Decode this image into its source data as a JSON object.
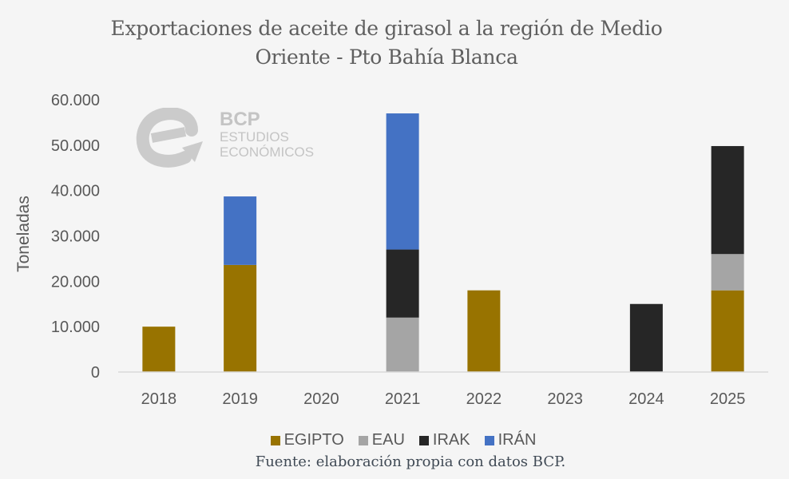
{
  "chart_data": {
    "type": "bar",
    "stacked": true,
    "title": [
      "Exportaciones de aceite de girasol a la región de Medio",
      "Oriente - Pto Bahía Blanca"
    ],
    "xlabel": "",
    "ylabel": "Toneladas",
    "ylim": [
      0,
      60000
    ],
    "yticks": [
      0,
      10000,
      20000,
      30000,
      40000,
      50000,
      60000
    ],
    "ytick_labels": [
      "0",
      "10.000",
      "20.000",
      "30.000",
      "40.000",
      "50.000",
      "60.000"
    ],
    "categories": [
      "2018",
      "2019",
      "2020",
      "2021",
      "2022",
      "2023",
      "2024",
      "2025"
    ],
    "series": [
      {
        "name": "EGIPTO",
        "color": "#987300",
        "values": [
          10000,
          23600,
          0,
          0,
          18000,
          0,
          0,
          18000
        ]
      },
      {
        "name": "EAU",
        "color": "#a5a5a5",
        "values": [
          0,
          0,
          0,
          12000,
          0,
          0,
          0,
          8000
        ]
      },
      {
        "name": "IRAK",
        "color": "#262626",
        "values": [
          0,
          0,
          0,
          15000,
          0,
          0,
          15000,
          23800
        ]
      },
      {
        "name": "IRÁN",
        "color": "#4472c4",
        "values": [
          0,
          15100,
          0,
          30000,
          0,
          0,
          0,
          0
        ]
      }
    ],
    "grid": false,
    "legend": "bottom"
  },
  "watermark": {
    "brand": "BCP",
    "line1": "ESTUDIOS",
    "line2": "ECONÓMICOS"
  },
  "source": "Fuente: elaboración propia con datos BCP."
}
